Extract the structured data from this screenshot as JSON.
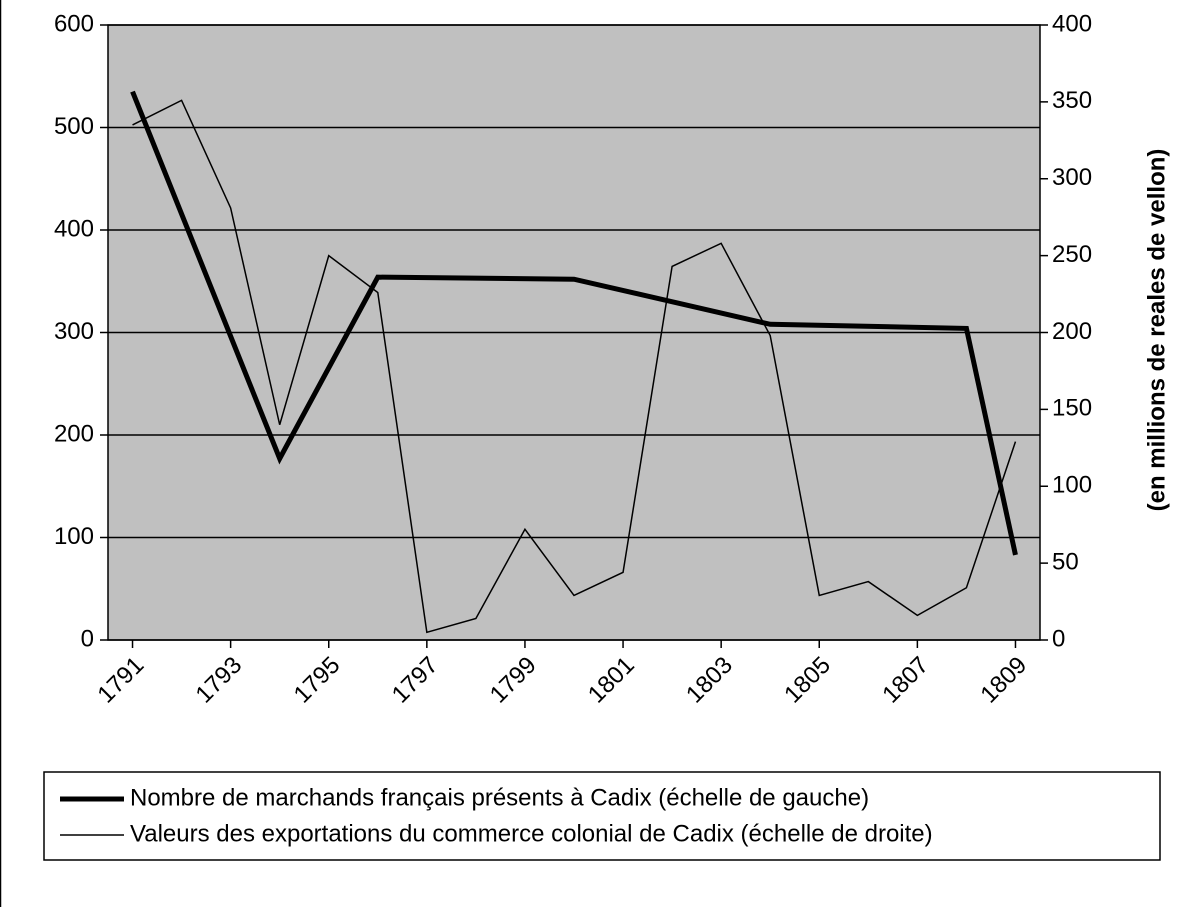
{
  "chart_data": {
    "type": "line",
    "y2_label": "(en millions de reales de vellon)",
    "xlim": [
      1790.5,
      1809.5
    ],
    "xticks": [
      1791,
      1793,
      1795,
      1797,
      1799,
      1801,
      1803,
      1805,
      1807,
      1809
    ],
    "ylim": [
      0,
      600
    ],
    "yticks": [
      0,
      100,
      200,
      300,
      400,
      500,
      600
    ],
    "y2lim": [
      0,
      400
    ],
    "y2ticks": [
      0,
      50,
      100,
      150,
      200,
      250,
      300,
      350,
      400
    ],
    "grid": true,
    "background": "#c0c0c0",
    "legend": "bottom",
    "series": [
      {
        "name": "Nombre de marchands français présents à Cadix (échelle de gauche)",
        "color": "#000000",
        "width": 5,
        "x": [
          1791,
          1794,
          1796,
          1800,
          1804,
          1808,
          1809
        ],
        "values": [
          535,
          177,
          354,
          352,
          308,
          304,
          83
        ]
      },
      {
        "name": "Valeurs des exportations du commerce colonial de Cadix (échelle de droite)",
        "color": "#000000",
        "width": 1.5,
        "axis": "y2",
        "x": [
          1791,
          1792,
          1793,
          1794,
          1795,
          1796,
          1797,
          1798,
          1799,
          1800,
          1801,
          1802,
          1803,
          1804,
          1805,
          1806,
          1807,
          1808,
          1809
        ],
        "values": [
          335,
          351,
          281,
          140,
          250,
          226,
          5,
          14,
          72,
          29,
          44,
          243,
          258,
          198,
          29,
          38,
          16,
          34,
          129
        ]
      }
    ]
  }
}
